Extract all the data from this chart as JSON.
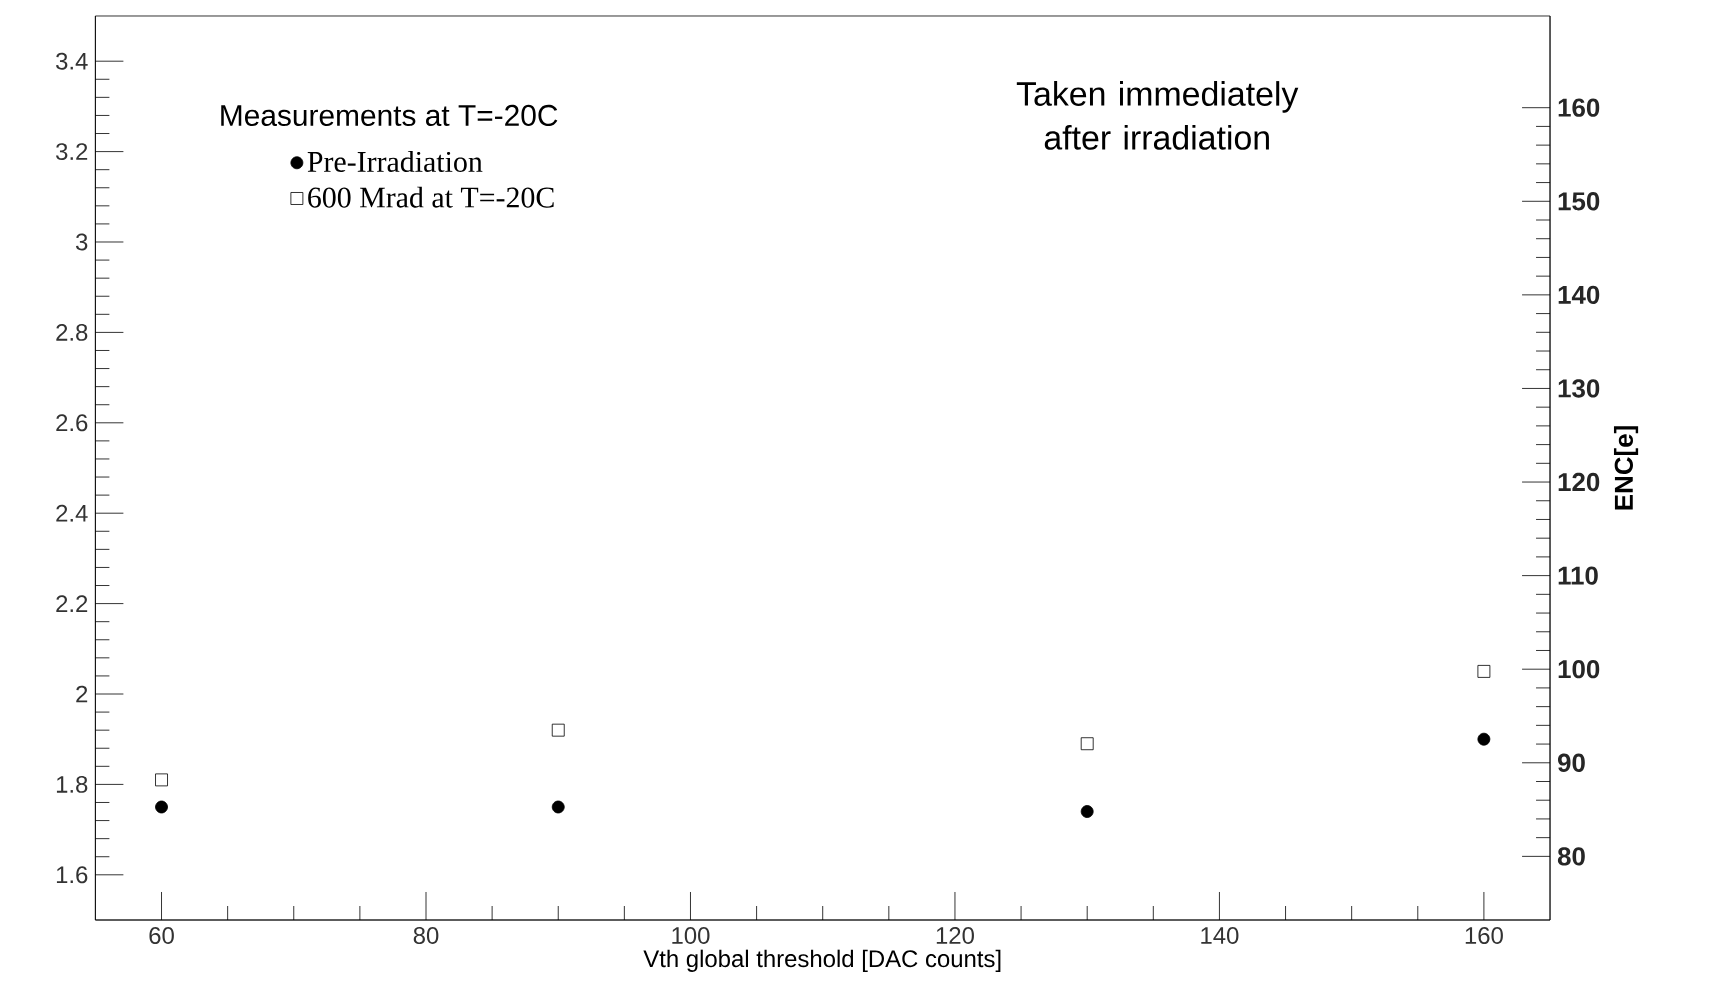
{
  "chart_data": {
    "type": "scatter",
    "xlabel": "Vth global threshold [DAC counts]",
    "y2label": "ENC[e]",
    "annotations": [
      "Measurements at T=-20C",
      "Taken immediately after irradiation"
    ],
    "series": [
      {
        "name": "Pre-Irradiation",
        "color": "#000000",
        "marker": "circle",
        "x": [
          60,
          90,
          130,
          160
        ],
        "values": [
          1.75,
          1.75,
          1.74,
          1.9
        ]
      },
      {
        "name": "600 Mrad at T=-20C",
        "color": "#000000",
        "marker": "square",
        "x": [
          60,
          90,
          130,
          160
        ],
        "values": [
          1.81,
          1.92,
          1.89,
          2.05
        ]
      }
    ],
    "xlim": [
      55,
      165
    ],
    "xticks": [
      60,
      80,
      100,
      120,
      140,
      160
    ],
    "ylim": [
      1.5,
      3.5
    ],
    "yticks": [
      1.6,
      1.8,
      2,
      2.2,
      2.4,
      2.6,
      2.8,
      3,
      3.2,
      3.4
    ],
    "y2lim": [
      73.2,
      169.8
    ],
    "y2ticks": [
      80,
      90,
      100,
      110,
      120,
      130,
      140,
      150,
      160
    ],
    "legend": "top left",
    "grid": false
  }
}
